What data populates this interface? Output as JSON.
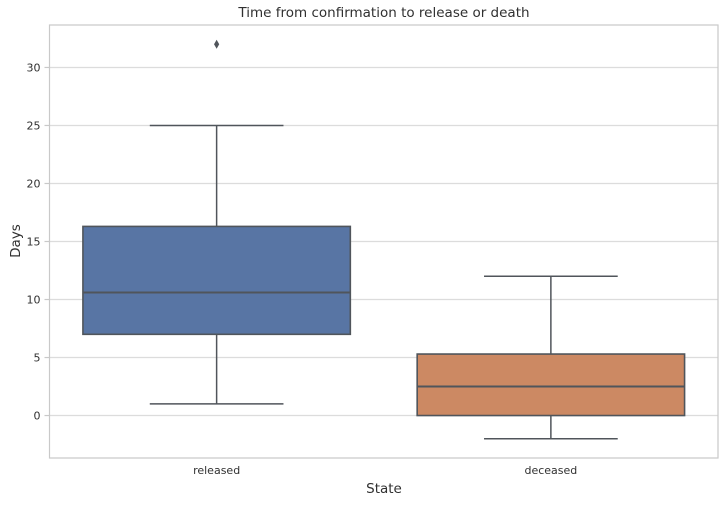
{
  "chart_data": {
    "type": "boxplot",
    "title": "Time from confirmation to release or death",
    "xlabel": "State",
    "ylabel": "Days",
    "categories": [
      "released",
      "deceased"
    ],
    "yticks": [
      0,
      5,
      10,
      15,
      20,
      25,
      30
    ],
    "ylim": [
      -3.66,
      33.66
    ],
    "grid": true,
    "legend": "none",
    "series": [
      {
        "name": "released",
        "whisker_low": 1,
        "q1": 7,
        "median": 10.6,
        "q3": 16.3,
        "whisker_high": 25,
        "outliers": [
          32
        ],
        "color": "#5875A4"
      },
      {
        "name": "deceased",
        "whisker_low": -2,
        "q1": 0,
        "median": 2.5,
        "q3": 5.3,
        "whisker_high": 12,
        "outliers": [],
        "color": "#CC8963"
      }
    ],
    "colors": {
      "box_edge": "#50555b",
      "grid": "#dcdcdc",
      "spine": "#c9c9c9",
      "text": "#303030",
      "background": "#ffffff"
    }
  }
}
